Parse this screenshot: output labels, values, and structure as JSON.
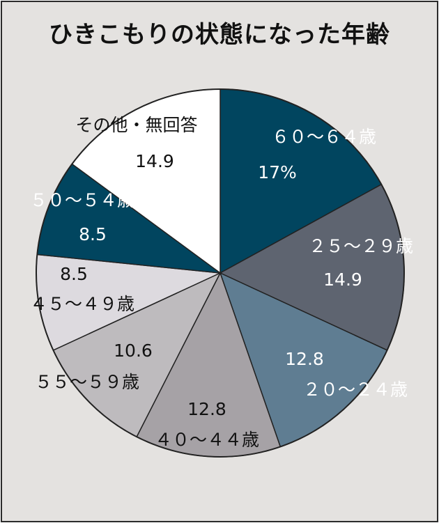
{
  "title": "ひきこもりの状態になった年齢",
  "chart_data": {
    "type": "pie",
    "title": "ひきこもりの状態になった年齢",
    "start": "12 o'clock, clockwise",
    "slices": [
      {
        "name": "６０～６４歳",
        "value": 17,
        "value_label": "17%",
        "color": "#01455f",
        "text_color": "#ffffff"
      },
      {
        "name": "２５～２９歳",
        "value": 14.9,
        "value_label": "14.9",
        "color": "#5e6470",
        "text_color": "#ffffff"
      },
      {
        "name": "２０～２４歳",
        "value": 12.8,
        "value_label": "12.8",
        "color": "#5f7d92",
        "text_color": "#ffffff"
      },
      {
        "name": "４０～４４歳",
        "value": 12.8,
        "value_label": "12.8",
        "color": "#a6a2a6",
        "text_color": "#111111"
      },
      {
        "name": "５５～５９歳",
        "value": 10.6,
        "value_label": "10.6",
        "color": "#bebbbe",
        "text_color": "#111111"
      },
      {
        "name": "４５～４９歳",
        "value": 8.5,
        "value_label": "8.5",
        "color": "#dddadf",
        "text_color": "#111111"
      },
      {
        "name": "５０～５４歳",
        "value": 8.5,
        "value_label": "8.5",
        "color": "#01455f",
        "text_color": "#ffffff"
      },
      {
        "name": "その他・無回答",
        "value": 14.9,
        "value_label": "14.9",
        "color": "#ffffff",
        "text_color": "#111111"
      }
    ]
  }
}
